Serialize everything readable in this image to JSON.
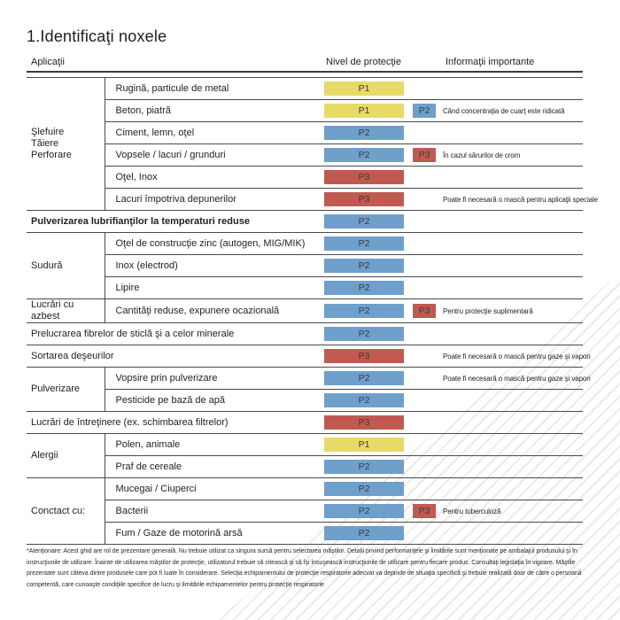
{
  "title": "1.Identificaţi noxele",
  "columns": {
    "applications": "Aplicaţii",
    "protection": "Nivel de protecţie",
    "info": "Informaţii importante"
  },
  "level_colors": {
    "P1": "#e7da68",
    "P2": "#6f9fcb",
    "P3": "#c05a51"
  },
  "rows": [
    {
      "category": {
        "label": "Şlefuire\nTăiere\nPerforare",
        "span": 6
      },
      "item": "Rugină, particule de metal",
      "level": "P1",
      "badge": null,
      "info": ""
    },
    {
      "item": "Beton, piatră",
      "level": "P1",
      "badge": "P2",
      "info": "Când concentraţia de cuarţ este ridicată"
    },
    {
      "item": "Ciment, lemn, oţel",
      "level": "P2",
      "badge": null,
      "info": ""
    },
    {
      "item": "Vopsele / lacuri / grunduri",
      "level": "P2",
      "badge": "P3",
      "info": "În cazul sărurilor de crom"
    },
    {
      "item": "Oţel, Inox",
      "level": "P3",
      "badge": null,
      "info": ""
    },
    {
      "item": "Lacuri împotriva depunerilor",
      "level": "P3",
      "badge": null,
      "info": "Poate fi necesară o mască pentru aplicaţii speciale"
    },
    {
      "full": true,
      "bold": true,
      "item": "Pulverizarea lubrifianţilor la temperaturi reduse",
      "level": "P2",
      "badge": null,
      "info": ""
    },
    {
      "category": {
        "label": "Sudură",
        "span": 3
      },
      "item": "Oţel de construcţie zinc (autogen, MIG/MIK)",
      "level": "P2",
      "badge": null,
      "info": ""
    },
    {
      "item": "Inox (electrod)",
      "level": "P2",
      "badge": null,
      "info": ""
    },
    {
      "item": "Lipire",
      "level": "P2",
      "badge": null,
      "info": ""
    },
    {
      "category": {
        "label": "Lucrări cu azbest",
        "span": 1
      },
      "item": "Cantităţi reduse, expunere ocazională",
      "level": "P2",
      "badge": "P3",
      "info": "Pentru protecţie suplimentară"
    },
    {
      "full": true,
      "item": "Prelucrarea fibrelor de sticlă şi a celor minerale",
      "level": "P2",
      "badge": null,
      "info": ""
    },
    {
      "full": true,
      "item": "Sortarea deşeurilor",
      "level": "P3",
      "badge": null,
      "info": "Poate fi necesară o mască pentru gaze şi vapori"
    },
    {
      "category": {
        "label": "Pulverizare",
        "span": 2
      },
      "item": "Vopsire prin pulverizare",
      "level": "P2",
      "badge": null,
      "info": "Poate fi necesară o mască pentru gaze şi vapori"
    },
    {
      "item": "Pesticide pe bază de apă",
      "level": "P2",
      "badge": null,
      "info": ""
    },
    {
      "full": true,
      "item": "Lucrări de întreţinere (ex. schimbarea filtrelor)",
      "level": "P3",
      "badge": null,
      "info": ""
    },
    {
      "category": {
        "label": "Alergii",
        "span": 2
      },
      "item": "Polen, animale",
      "level": "P1",
      "badge": null,
      "info": ""
    },
    {
      "item": "Praf de cereale",
      "level": "P2",
      "badge": null,
      "info": ""
    },
    {
      "category": {
        "label": "Conctact cu:",
        "span": 3
      },
      "item": "Mucegai / Ciuperci",
      "level": "P2",
      "badge": null,
      "info": ""
    },
    {
      "item": "Bacterii",
      "level": "P2",
      "badge": "P3",
      "info": "Pentru tuberculoză"
    },
    {
      "item": "Fum / Gaze de motorină arsă",
      "level": "P2",
      "badge": null,
      "info": ""
    }
  ],
  "footnote": "*Atenţionare: Acest ghid are rol de prezentare generală. Nu trebuie utilizat ca singura sursă pentru selectarea măştilor. Detalii privind performanţele şi limitările sunt menţionate pe ambalajul produsului şi în instrucţiunile de utilizare. Înainte de utilizarea măştilor de protecţie, utilizatorul trebuie să citească şi să îşi însuşească instrucţiunile de utilizare pentru fiecare produs. Consultaţi legislaţia în vigoare. Măştile prezentate sunt câteva dintre produsele care pot fi luate în considerare. Selecţia echipamentului de protecţie respiratorie adecvat va depinde de situaţia specifică şi trebuie realizată doar de către o persoană competentă, care cunoaşte condiţiile specifice de lucru şi limitările echipamentelor pentru protecţie respiratorie"
}
